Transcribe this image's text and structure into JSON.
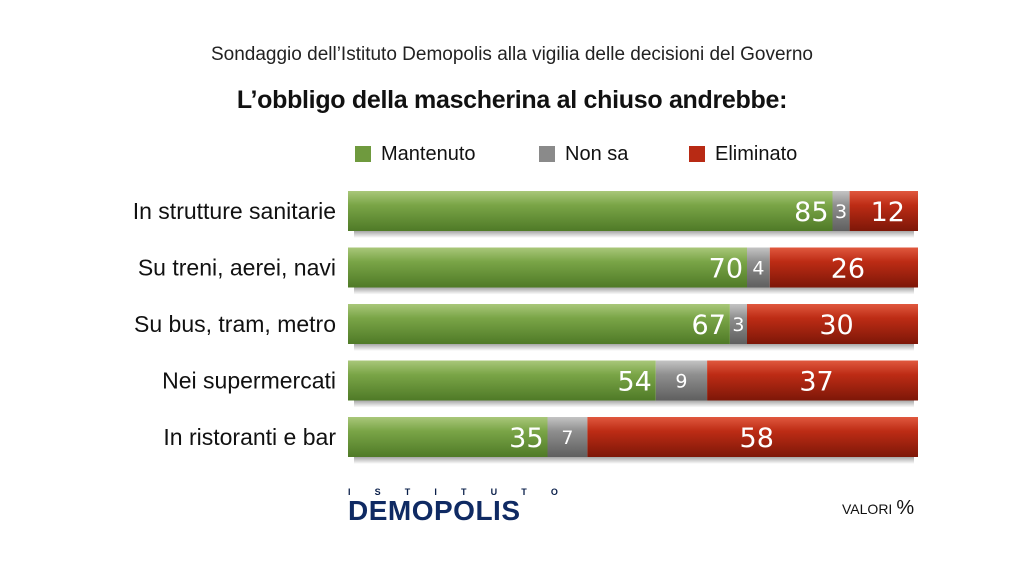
{
  "header": {
    "subtitle": "Sondaggio dell’Istituto Demopolis alla vigilia delle decisioni del Governo",
    "title": "L’obbligo della mascherina al chiuso andrebbe:"
  },
  "colors": {
    "mantenuto": "#6f9a3e",
    "non_sa": "#8a8a8a",
    "eliminato": "#b82a14"
  },
  "chart_data": {
    "type": "bar",
    "stacked": true,
    "orientation": "horizontal",
    "categories": [
      "In strutture sanitarie",
      "Su treni, aerei, navi",
      "Su bus, tram, metro",
      "Nei supermercati",
      "In ristoranti e bar"
    ],
    "series": [
      {
        "name": "Mantenuto",
        "values": [
          85,
          70,
          67,
          54,
          35
        ]
      },
      {
        "name": "Non sa",
        "values": [
          3,
          4,
          3,
          9,
          7
        ]
      },
      {
        "name": "Eliminato",
        "values": [
          12,
          26,
          30,
          37,
          58
        ]
      }
    ],
    "xlim": [
      0,
      100
    ],
    "legend_position": "top",
    "grid": false
  },
  "footer": {
    "logo_top": [
      "I",
      "S",
      "T",
      "I",
      "T",
      "U",
      "T",
      "O"
    ],
    "logo_main": "DEMOPOLIS",
    "units_label": "VALORI",
    "units_symbol": "%"
  }
}
